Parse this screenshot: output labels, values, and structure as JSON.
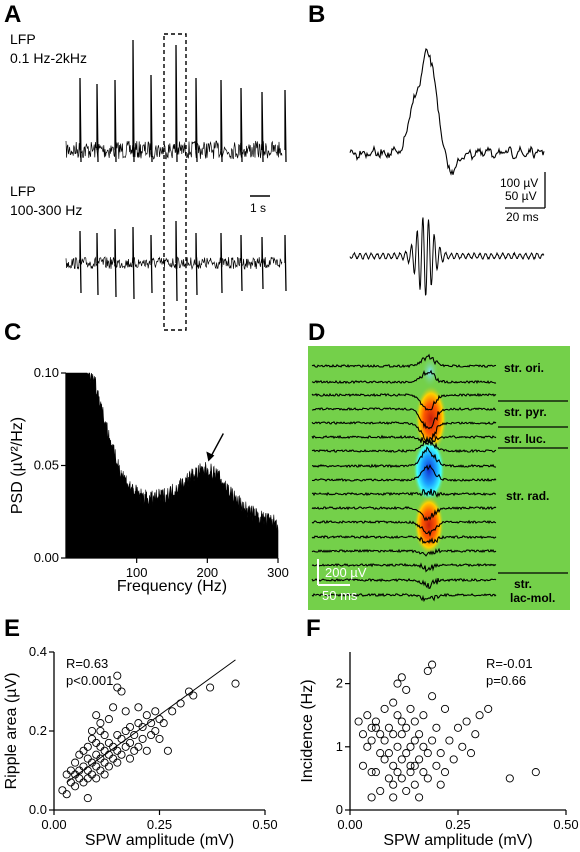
{
  "panels": {
    "a": {
      "label": "A",
      "trace1_label_1": "LFP",
      "trace1_label_2": "0.1 Hz-2kHz",
      "trace2_label_1": "LFP",
      "trace2_label_2": "100-300 Hz",
      "scalebar": "1 s"
    },
    "b": {
      "label": "B",
      "scale_1": "100 µV",
      "scale_2": "50 µV",
      "scale_3": "20 ms"
    },
    "c": {
      "label": "C"
    },
    "d": {
      "label": "D",
      "scale_v": "200 µV",
      "scale_t": "50 ms",
      "layers": [
        "str. ori.",
        "str. pyr.",
        "str. luc.",
        "str. rad.",
        "str.",
        "lac-mol."
      ]
    },
    "e": {
      "label": "E"
    },
    "f": {
      "label": "F"
    }
  },
  "chart_data": [
    {
      "id": "C",
      "type": "area",
      "xlabel": "Frequency (Hz)",
      "ylabel": "PSD (µV²/Hz)",
      "xlim": [
        0,
        300
      ],
      "ylim": [
        0.0,
        0.1
      ],
      "xticks": [
        "100",
        "200",
        "300"
      ],
      "yticks": [
        "0.00",
        "0.05",
        "0.10"
      ],
      "x": [
        0,
        30,
        40,
        50,
        60,
        70,
        80,
        90,
        100,
        110,
        120,
        130,
        140,
        150,
        160,
        170,
        180,
        190,
        200,
        210,
        220,
        230,
        240,
        250,
        260,
        270,
        280,
        290,
        300
      ],
      "y": [
        0.1,
        0.1,
        0.095,
        0.08,
        0.065,
        0.052,
        0.043,
        0.037,
        0.033,
        0.031,
        0.03,
        0.031,
        0.032,
        0.034,
        0.037,
        0.04,
        0.043,
        0.045,
        0.046,
        0.044,
        0.04,
        0.035,
        0.03,
        0.026,
        0.023,
        0.021,
        0.019,
        0.018,
        0.017
      ],
      "arrow_at": 200
    },
    {
      "id": "E",
      "type": "scatter",
      "xlabel": "SPW amplitude (mV)",
      "ylabel": "Ripple area (µV)",
      "xlim": [
        0,
        0.5
      ],
      "ylim": [
        0,
        0.4
      ],
      "xticks": [
        "0.00",
        "0.25",
        "0.50"
      ],
      "yticks": [
        "0.0",
        "0.2",
        "0.4"
      ],
      "annotation": [
        "R=0.63",
        "p<0.001"
      ],
      "fit": {
        "x": [
          0.03,
          0.43
        ],
        "y": [
          0.07,
          0.38
        ]
      },
      "x": [
        0.02,
        0.03,
        0.03,
        0.04,
        0.04,
        0.05,
        0.05,
        0.05,
        0.06,
        0.06,
        0.06,
        0.07,
        0.07,
        0.07,
        0.08,
        0.08,
        0.08,
        0.08,
        0.09,
        0.09,
        0.09,
        0.1,
        0.1,
        0.1,
        0.1,
        0.1,
        0.11,
        0.11,
        0.11,
        0.11,
        0.12,
        0.12,
        0.12,
        0.12,
        0.13,
        0.13,
        0.13,
        0.13,
        0.14,
        0.14,
        0.14,
        0.15,
        0.15,
        0.15,
        0.15,
        0.15,
        0.16,
        0.16,
        0.16,
        0.17,
        0.17,
        0.17,
        0.18,
        0.18,
        0.18,
        0.19,
        0.19,
        0.2,
        0.2,
        0.2,
        0.21,
        0.21,
        0.22,
        0.22,
        0.23,
        0.23,
        0.24,
        0.24,
        0.25,
        0.25,
        0.26,
        0.27,
        0.28,
        0.3,
        0.32,
        0.33,
        0.37,
        0.43,
        0.11,
        0.09,
        0.08
      ],
      "y": [
        0.05,
        0.09,
        0.04,
        0.07,
        0.1,
        0.06,
        0.09,
        0.12,
        0.08,
        0.1,
        0.14,
        0.07,
        0.11,
        0.15,
        0.08,
        0.1,
        0.13,
        0.16,
        0.09,
        0.12,
        0.18,
        0.08,
        0.11,
        0.14,
        0.17,
        0.24,
        0.1,
        0.13,
        0.16,
        0.2,
        0.09,
        0.12,
        0.15,
        0.19,
        0.11,
        0.14,
        0.17,
        0.23,
        0.13,
        0.16,
        0.26,
        0.12,
        0.15,
        0.19,
        0.31,
        0.34,
        0.14,
        0.18,
        0.3,
        0.16,
        0.2,
        0.25,
        0.13,
        0.17,
        0.21,
        0.15,
        0.19,
        0.16,
        0.22,
        0.26,
        0.18,
        0.21,
        0.15,
        0.24,
        0.19,
        0.22,
        0.2,
        0.25,
        0.18,
        0.23,
        0.22,
        0.15,
        0.25,
        0.27,
        0.3,
        0.29,
        0.31,
        0.32,
        0.22,
        0.2,
        0.03
      ]
    },
    {
      "id": "F",
      "type": "scatter",
      "xlabel": "SPW amplitude (mV)",
      "ylabel": "Incidence (Hz)",
      "xlim": [
        0,
        0.5
      ],
      "ylim": [
        0,
        2.5
      ],
      "xticks": [
        "0.00",
        "0.25",
        "0.50"
      ],
      "yticks": [
        "0",
        "1",
        "2"
      ],
      "annotation": [
        "R=-0.01",
        "p=0.66"
      ],
      "x": [
        0.02,
        0.03,
        0.03,
        0.04,
        0.04,
        0.05,
        0.05,
        0.05,
        0.06,
        0.06,
        0.07,
        0.07,
        0.07,
        0.08,
        0.08,
        0.08,
        0.09,
        0.09,
        0.09,
        0.1,
        0.1,
        0.1,
        0.1,
        0.11,
        0.11,
        0.11,
        0.11,
        0.12,
        0.12,
        0.12,
        0.12,
        0.13,
        0.13,
        0.13,
        0.13,
        0.14,
        0.14,
        0.14,
        0.15,
        0.15,
        0.15,
        0.15,
        0.16,
        0.16,
        0.16,
        0.17,
        0.17,
        0.17,
        0.18,
        0.18,
        0.18,
        0.19,
        0.19,
        0.2,
        0.2,
        0.21,
        0.21,
        0.22,
        0.22,
        0.23,
        0.24,
        0.25,
        0.26,
        0.27,
        0.28,
        0.29,
        0.3,
        0.32,
        0.37,
        0.43,
        0.06,
        0.05,
        0.1,
        0.12,
        0.14,
        0.19
      ],
      "y": [
        1.4,
        1.2,
        0.7,
        1.5,
        1.0,
        0.2,
        1.3,
        1.1,
        0.6,
        1.4,
        0.9,
        1.2,
        0.3,
        1.6,
        0.8,
        1.1,
        0.5,
        1.3,
        0.9,
        1.7,
        1.2,
        0.7,
        0.4,
        2.0,
        1.5,
        1.0,
        0.6,
        2.1,
        1.4,
        0.8,
        0.5,
        1.9,
        1.3,
        0.9,
        0.3,
        1.6,
        1.0,
        0.6,
        1.4,
        1.1,
        0.7,
        0.4,
        1.2,
        0.8,
        0.2,
        1.5,
        1.0,
        0.6,
        2.2,
        0.9,
        0.5,
        2.3,
        1.1,
        1.3,
        0.7,
        0.9,
        0.4,
        1.6,
        0.6,
        1.1,
        0.8,
        1.3,
        1.0,
        1.4,
        0.9,
        1.2,
        1.5,
        1.6,
        0.5,
        0.6,
        1.3,
        0.6,
        0.2,
        1.2,
        0.7,
        1.8
      ]
    }
  ]
}
